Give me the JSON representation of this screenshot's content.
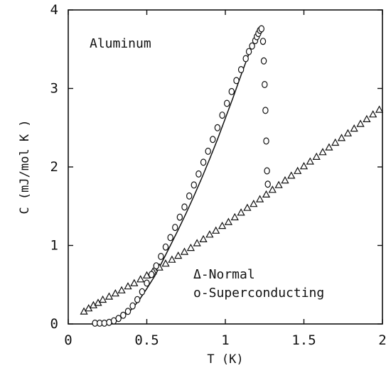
{
  "chart_data": {
    "type": "scatter",
    "title": "",
    "xlabel": "T (K)",
    "ylabel": "C (mJ/mol K )",
    "xlim": [
      0,
      2
    ],
    "ylim": [
      0,
      4
    ],
    "xticks": [
      0,
      0.5,
      1,
      1.5,
      2
    ],
    "xtick_labels": [
      "0",
      "0.5",
      "1",
      "1.5",
      "2"
    ],
    "yticks": [
      0,
      1,
      2,
      3,
      4
    ],
    "ytick_labels": [
      "0",
      "1",
      "2",
      "3",
      "4"
    ],
    "grid": false,
    "annotations": [
      {
        "text": "Aluminum",
        "position": "top-left"
      }
    ],
    "legend_text": [
      "Δ-Normal",
      "o-Superconducting"
    ],
    "legend_position": "bottom-right",
    "fit_curve": {
      "x": [
        0.15,
        0.2,
        0.25,
        0.3,
        0.35,
        0.4,
        0.45,
        0.5,
        0.55,
        0.6,
        0.65,
        0.7,
        0.75,
        0.8,
        0.85,
        0.9,
        0.95,
        1.0,
        1.05,
        1.1,
        1.15,
        1.2,
        1.22
      ],
      "y": [
        0.0,
        0.0,
        0.01,
        0.04,
        0.1,
        0.18,
        0.3,
        0.45,
        0.61,
        0.8,
        1.0,
        1.2,
        1.41,
        1.63,
        1.86,
        2.1,
        2.35,
        2.62,
        2.89,
        3.17,
        3.44,
        3.68,
        3.75
      ]
    },
    "series": [
      {
        "marker": "triangle",
        "x": [
          0.1,
          0.13,
          0.16,
          0.19,
          0.22,
          0.26,
          0.3,
          0.34,
          0.38,
          0.42,
          0.46,
          0.5,
          0.54,
          0.58,
          0.62,
          0.66,
          0.7,
          0.74,
          0.78,
          0.82,
          0.86,
          0.9,
          0.94,
          0.98,
          1.02,
          1.06,
          1.1,
          1.14,
          1.18,
          1.22,
          1.26,
          1.3,
          1.34,
          1.38,
          1.42,
          1.46,
          1.5,
          1.54,
          1.58,
          1.62,
          1.66,
          1.7,
          1.74,
          1.78,
          1.82,
          1.86,
          1.9,
          1.94,
          1.98
        ],
        "y": [
          0.16,
          0.2,
          0.24,
          0.27,
          0.31,
          0.35,
          0.39,
          0.43,
          0.48,
          0.52,
          0.57,
          0.62,
          0.67,
          0.72,
          0.77,
          0.82,
          0.87,
          0.92,
          0.97,
          1.03,
          1.08,
          1.14,
          1.19,
          1.25,
          1.3,
          1.36,
          1.42,
          1.48,
          1.53,
          1.59,
          1.65,
          1.71,
          1.77,
          1.83,
          1.89,
          1.95,
          2.01,
          2.07,
          2.13,
          2.19,
          2.25,
          2.31,
          2.37,
          2.43,
          2.49,
          2.55,
          2.61,
          2.67,
          2.73
        ]
      },
      {
        "marker": "circle",
        "x": [
          0.17,
          0.2,
          0.23,
          0.26,
          0.29,
          0.32,
          0.35,
          0.38,
          0.41,
          0.44,
          0.47,
          0.5,
          0.53,
          0.56,
          0.59,
          0.62,
          0.65,
          0.68,
          0.71,
          0.74,
          0.77,
          0.8,
          0.83,
          0.86,
          0.89,
          0.92,
          0.95,
          0.98,
          1.01,
          1.04,
          1.07,
          1.1,
          1.13,
          1.15,
          1.17,
          1.19,
          1.2,
          1.21,
          1.22,
          1.23,
          1.24,
          1.245,
          1.25,
          1.255,
          1.26,
          1.265,
          1.27
        ],
        "y": [
          0.01,
          0.01,
          0.01,
          0.02,
          0.04,
          0.07,
          0.11,
          0.16,
          0.23,
          0.31,
          0.41,
          0.52,
          0.63,
          0.74,
          0.86,
          0.98,
          1.1,
          1.23,
          1.36,
          1.49,
          1.63,
          1.77,
          1.91,
          2.06,
          2.2,
          2.35,
          2.5,
          2.66,
          2.81,
          2.96,
          3.1,
          3.24,
          3.38,
          3.47,
          3.54,
          3.61,
          3.66,
          3.7,
          3.74,
          3.76,
          3.6,
          3.35,
          3.05,
          2.72,
          2.33,
          1.95,
          1.78
        ]
      }
    ]
  }
}
